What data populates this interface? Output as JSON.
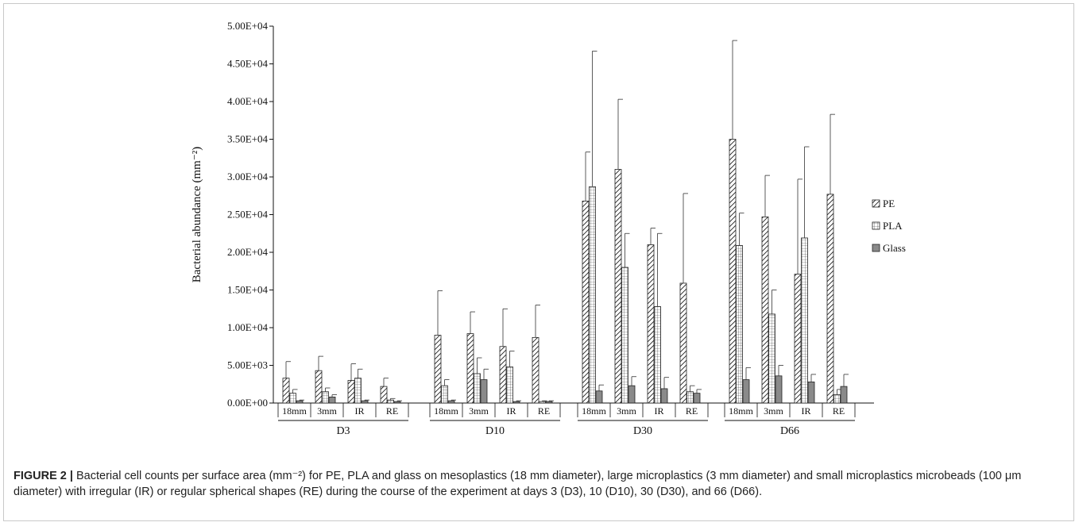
{
  "caption": {
    "label": "FIGURE 2 |",
    "text": " Bacterial cell counts per surface area (mm⁻²) for PE, PLA and glass on mesoplastics (18 mm diameter), large microplastics (3 mm diameter) and small microplastics microbeads (100 μm diameter) with irregular (IR) or regular spherical shapes (RE) during the course of the experiment at days 3 (D3), 10 (D10), 30 (D30), and 66 (D66)."
  },
  "chart_data": {
    "type": "bar",
    "title": "",
    "ylabel": "Bacterial abundance (mm⁻²)",
    "xlabel": "",
    "ylim": [
      0,
      50000
    ],
    "yticks": [
      0,
      5000,
      10000,
      15000,
      20000,
      25000,
      30000,
      35000,
      40000,
      45000,
      50000
    ],
    "ytick_labels": [
      "0.00E+00",
      "5.00E+03",
      "1.00E+04",
      "1.50E+04",
      "2.00E+04",
      "2.50E+04",
      "3.00E+04",
      "3.50E+04",
      "4.00E+04",
      "4.50E+04",
      "5.00E+04"
    ],
    "groups": [
      "D3",
      "D10",
      "D30",
      "D66"
    ],
    "categories": [
      "18mm",
      "3mm",
      "IR",
      "RE"
    ],
    "legend_position": "right",
    "grid": false,
    "error_bars": true,
    "series": [
      {
        "name": "PE",
        "pattern": "diagonal-hatch",
        "values": [
          [
            3300,
            4300,
            3000,
            2200
          ],
          [
            9000,
            9200,
            7500,
            8700
          ],
          [
            26800,
            31000,
            21000,
            15900
          ],
          [
            35000,
            24700,
            17100,
            27700
          ]
        ],
        "errors": [
          [
            2200,
            1900,
            2200,
            1100
          ],
          [
            5900,
            2900,
            5000,
            4300
          ],
          [
            6500,
            9300,
            2200,
            11900
          ],
          [
            13100,
            5500,
            12600,
            10600
          ]
        ]
      },
      {
        "name": "PLA",
        "pattern": "grid-hatch",
        "values": [
          [
            1300,
            1500,
            3300,
            400
          ],
          [
            2300,
            3900,
            4800,
            200
          ],
          [
            28700,
            18000,
            12800,
            1500
          ],
          [
            20900,
            11800,
            21900,
            1100
          ]
        ],
        "errors": [
          [
            500,
            500,
            1200,
            200
          ],
          [
            800,
            2100,
            2100,
            100
          ],
          [
            18000,
            4500,
            9700,
            800
          ],
          [
            4300,
            3200,
            12100,
            700
          ]
        ]
      },
      {
        "name": "Glass",
        "pattern": "solid-gray",
        "values": [
          [
            300,
            800,
            300,
            200
          ],
          [
            300,
            3100,
            200,
            200
          ],
          [
            1600,
            2300,
            1900,
            1300
          ],
          [
            3100,
            3600,
            2800,
            2200
          ]
        ],
        "errors": [
          [
            100,
            300,
            100,
            100
          ],
          [
            100,
            1400,
            100,
            100
          ],
          [
            800,
            1200,
            1500,
            500
          ],
          [
            1600,
            1400,
            1000,
            1600
          ]
        ]
      }
    ]
  }
}
